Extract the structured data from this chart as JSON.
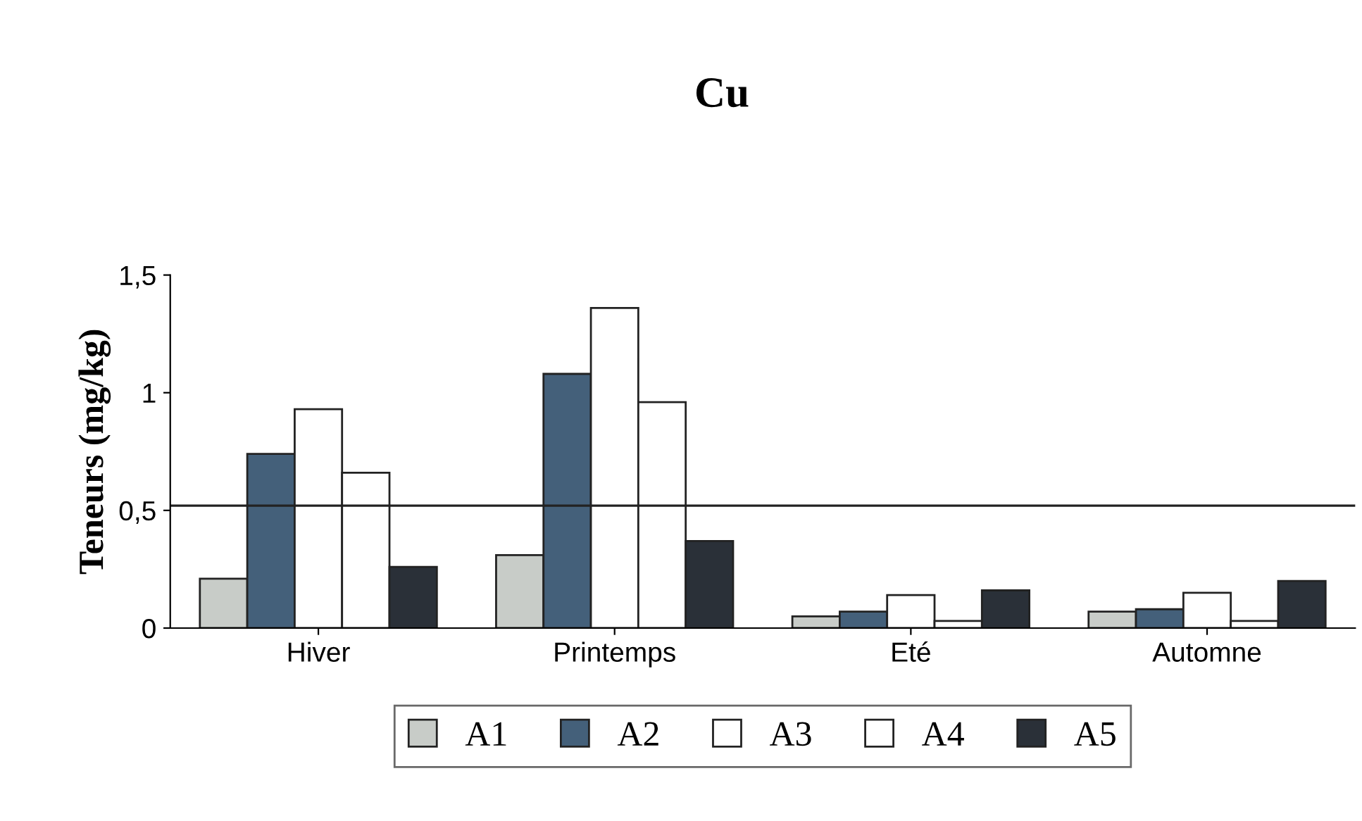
{
  "chart_data": {
    "type": "bar",
    "title": "Cu",
    "ylabel": "Teneurs (mg/kg)",
    "categories": [
      "Hiver",
      "Printemps",
      "Eté",
      "Automne"
    ],
    "series": [
      {
        "name": "A1",
        "color": "#c8ccc8",
        "values": [
          0.21,
          0.31,
          0.05,
          0.07
        ]
      },
      {
        "name": "A2",
        "color": "#44607a",
        "values": [
          0.74,
          1.08,
          0.07,
          0.08
        ]
      },
      {
        "name": "A3",
        "color": "#ffffff",
        "values": [
          0.93,
          1.36,
          0.14,
          0.15
        ]
      },
      {
        "name": "A4",
        "color": "#ffffff",
        "values": [
          0.66,
          0.96,
          0.03,
          0.03
        ]
      },
      {
        "name": "A5",
        "color": "#2a3038",
        "values": [
          0.26,
          0.37,
          0.16,
          0.2
        ]
      }
    ],
    "ylim": [
      0,
      1.5
    ],
    "yticks": [
      0,
      {
        "value": 0.5,
        "label": "0,5"
      },
      1,
      {
        "value": 1.5,
        "label": "1,5"
      }
    ],
    "ref_lines": [
      {
        "axis": "y",
        "value": 0.52
      }
    ],
    "legend": "bottom",
    "grid": false
  }
}
